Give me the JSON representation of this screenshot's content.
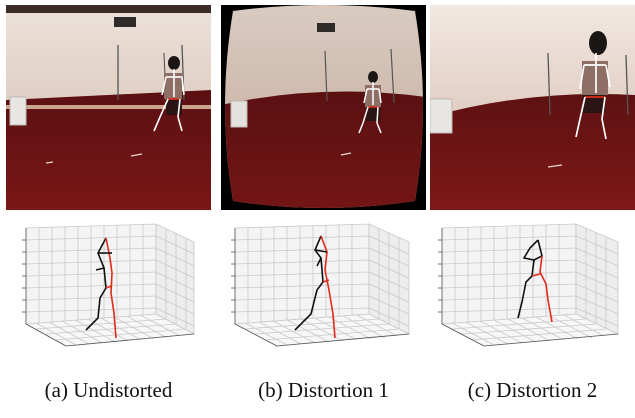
{
  "figure": {
    "panels": [
      {
        "caption": "(a) Undistorted"
      },
      {
        "caption": "(b) Distortion 1"
      },
      {
        "caption": "(c) Distortion 2"
      }
    ]
  },
  "colors": {
    "wall": "#d9c2b6",
    "floor": "#6a1313",
    "skeleton_right": "#e02a1a",
    "skeleton_left": "#111111",
    "grid": "#c9c9c9"
  }
}
